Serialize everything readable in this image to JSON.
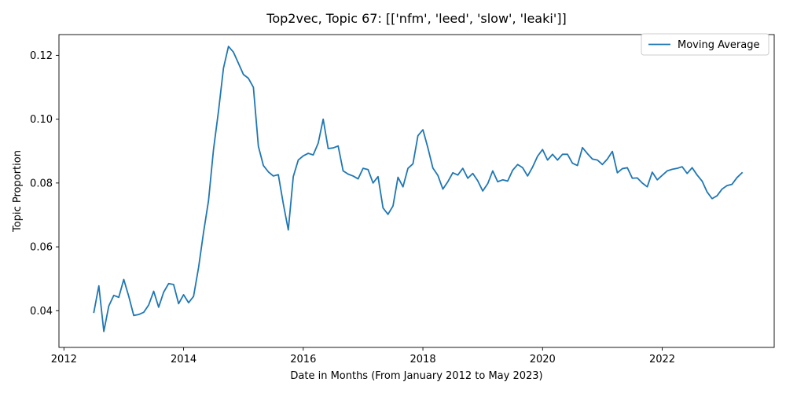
{
  "chart_data": {
    "type": "line",
    "title": "Top2vec, Topic 67: [['nfm', 'leed', 'slow', 'leaki']]",
    "xlabel": "Date in Months (From January 2012 to May 2023)",
    "ylabel": "Topic Proportion",
    "xlim": [
      "2011-12-01",
      "2023-11-15"
    ],
    "ylim": [
      0.0285,
      0.1265
    ],
    "x_ticks": [
      "2012",
      "2014",
      "2016",
      "2018",
      "2020",
      "2022"
    ],
    "y_ticks": [
      "0.04",
      "0.06",
      "0.08",
      "0.10",
      "0.12"
    ],
    "grid": false,
    "legend": {
      "position": "top-right"
    },
    "series": [
      {
        "name": "Moving Average",
        "color": "#1f77b4",
        "x": [
          "2012-07",
          "2012-08",
          "2012-09",
          "2012-10",
          "2012-11",
          "2012-12",
          "2013-01",
          "2013-02",
          "2013-03",
          "2013-04",
          "2013-05",
          "2013-06",
          "2013-07",
          "2013-08",
          "2013-09",
          "2013-10",
          "2013-11",
          "2013-12",
          "2014-01",
          "2014-02",
          "2014-03",
          "2014-04",
          "2014-05",
          "2014-06",
          "2014-07",
          "2014-08",
          "2014-09",
          "2014-10",
          "2014-11",
          "2014-12",
          "2015-01",
          "2015-02",
          "2015-03",
          "2015-04",
          "2015-05",
          "2015-06",
          "2015-07",
          "2015-08",
          "2015-09",
          "2015-10",
          "2015-11",
          "2015-12",
          "2016-01",
          "2016-02",
          "2016-03",
          "2016-04",
          "2016-05",
          "2016-06",
          "2016-07",
          "2016-08",
          "2016-09",
          "2016-10",
          "2016-11",
          "2016-12",
          "2017-01",
          "2017-02",
          "2017-03",
          "2017-04",
          "2017-05",
          "2017-06",
          "2017-07",
          "2017-08",
          "2017-09",
          "2017-10",
          "2017-11",
          "2017-12",
          "2018-01",
          "2018-02",
          "2018-03",
          "2018-04",
          "2018-05",
          "2018-06",
          "2018-07",
          "2018-08",
          "2018-09",
          "2018-10",
          "2018-11",
          "2018-12",
          "2019-01",
          "2019-02",
          "2019-03",
          "2019-04",
          "2019-05",
          "2019-06",
          "2019-07",
          "2019-08",
          "2019-09",
          "2019-10",
          "2019-11",
          "2019-12",
          "2020-01",
          "2020-02",
          "2020-03",
          "2020-04",
          "2020-05",
          "2020-06",
          "2020-07",
          "2020-08",
          "2020-09",
          "2020-10",
          "2020-11",
          "2020-12",
          "2021-01",
          "2021-02",
          "2021-03",
          "2021-04",
          "2021-05",
          "2021-06",
          "2021-07",
          "2021-08",
          "2021-09",
          "2021-10",
          "2021-11",
          "2021-12",
          "2022-01",
          "2022-02",
          "2022-03",
          "2022-04",
          "2022-05",
          "2022-06",
          "2022-07",
          "2022-08",
          "2022-09",
          "2022-10",
          "2022-11",
          "2022-12",
          "2023-01",
          "2023-02",
          "2023-03",
          "2023-04",
          "2023-05"
        ],
        "values": [
          0.0395,
          0.0478,
          0.0335,
          0.0415,
          0.0448,
          0.0442,
          0.0498,
          0.0445,
          0.0385,
          0.0388,
          0.0395,
          0.0418,
          0.0461,
          0.0411,
          0.0458,
          0.0485,
          0.0482,
          0.0422,
          0.045,
          0.0425,
          0.0445,
          0.0535,
          0.0645,
          0.0745,
          0.0905,
          0.1025,
          0.116,
          0.1228,
          0.121,
          0.1175,
          0.114,
          0.1128,
          0.11,
          0.0915,
          0.0855,
          0.0835,
          0.0822,
          0.0826,
          0.0735,
          0.0653,
          0.082,
          0.0872,
          0.0885,
          0.0893,
          0.0888,
          0.0925,
          0.1,
          0.0908,
          0.091,
          0.0916,
          0.0838,
          0.0828,
          0.0822,
          0.0813,
          0.0846,
          0.0842,
          0.08,
          0.082,
          0.0722,
          0.0702,
          0.0728,
          0.0818,
          0.0788,
          0.0846,
          0.086,
          0.0948,
          0.0967,
          0.091,
          0.0847,
          0.0824,
          0.0781,
          0.0804,
          0.0832,
          0.0825,
          0.0846,
          0.0815,
          0.083,
          0.0807,
          0.0775,
          0.0798,
          0.0838,
          0.0804,
          0.081,
          0.0806,
          0.084,
          0.0858,
          0.0848,
          0.0822,
          0.085,
          0.0884,
          0.0905,
          0.0872,
          0.089,
          0.0872,
          0.089,
          0.089,
          0.0862,
          0.0855,
          0.0911,
          0.0892,
          0.0875,
          0.0872,
          0.0858,
          0.0875,
          0.0899,
          0.0832,
          0.0845,
          0.0848,
          0.0815,
          0.0816,
          0.08,
          0.0788,
          0.0834,
          0.081,
          0.0824,
          0.0838,
          0.0843,
          0.0846,
          0.0851,
          0.083,
          0.0848,
          0.0825,
          0.0806,
          0.0772,
          0.0751,
          0.076,
          0.0781,
          0.0792,
          0.0796,
          0.0817,
          0.0832
        ]
      }
    ]
  }
}
